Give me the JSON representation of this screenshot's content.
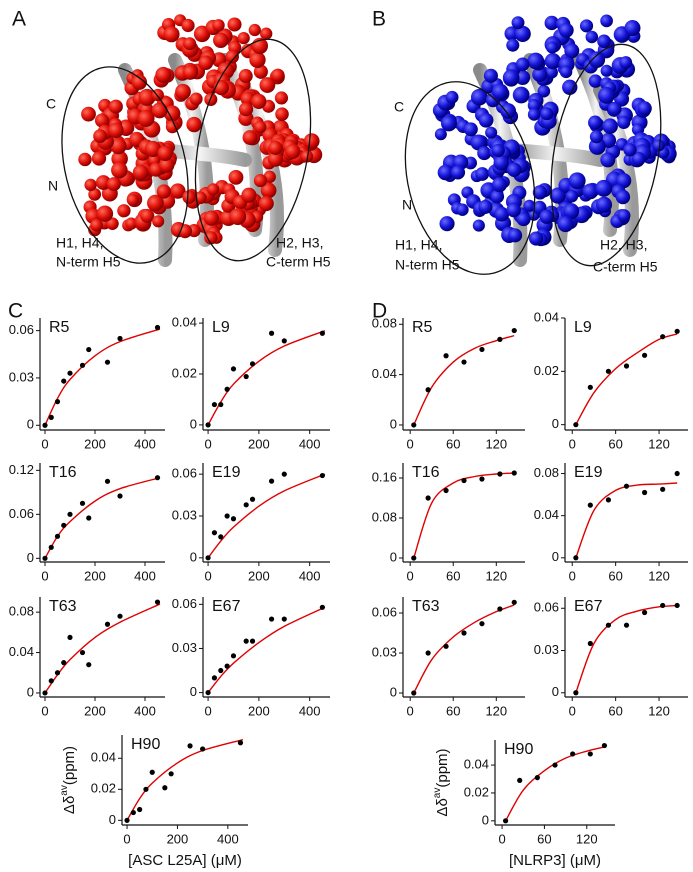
{
  "panels": {
    "A": {
      "letter": "A",
      "c_term": "C",
      "n_term": "N",
      "left_1": "H1, H4,",
      "left_2": "N-term H5",
      "right_1": "H2, H3,",
      "right_2": "C-term H5"
    },
    "B": {
      "letter": "B",
      "c_term": "C",
      "n_term": "N",
      "left_1": "H1, H4,",
      "left_2": "N-term H5",
      "right_1": "H2, H3,",
      "right_2": "C-term H5"
    },
    "C": {
      "letter": "C"
    },
    "D": {
      "letter": "D"
    }
  },
  "chart_data": [
    {
      "type": "scatter",
      "title": "R5",
      "x": [
        0,
        25,
        50,
        75,
        100,
        150,
        175,
        250,
        300,
        450
      ],
      "values": [
        0,
        0.005,
        0.015,
        0.028,
        0.033,
        0.038,
        0.048,
        0.04,
        0.055,
        0.062
      ],
      "fit": {
        "x": [
          0,
          50,
          100,
          200,
          300,
          460
        ],
        "y": [
          0,
          0.017,
          0.029,
          0.044,
          0.053,
          0.061
        ]
      },
      "xlim": [
        -20,
        480
      ],
      "ylim": [
        -0.003,
        0.068
      ],
      "xticks": [
        0,
        200,
        400
      ],
      "yticks": [
        0,
        0.03,
        0.06
      ],
      "point_color": "#000000",
      "color": "#e00000"
    },
    {
      "type": "scatter",
      "title": "L9",
      "x": [
        0,
        25,
        50,
        75,
        100,
        150,
        175,
        250,
        300,
        450
      ],
      "values": [
        0,
        0.008,
        0.008,
        0.014,
        0.022,
        0.019,
        0.024,
        0.036,
        0.033,
        0.036
      ],
      "fit": {
        "x": [
          0,
          50,
          100,
          200,
          300,
          460
        ],
        "y": [
          0,
          0.009,
          0.016,
          0.025,
          0.031,
          0.037
        ]
      },
      "xlim": [
        -20,
        480
      ],
      "ylim": [
        -0.002,
        0.042
      ],
      "xticks": [
        0,
        200,
        400
      ],
      "yticks": [
        0,
        0.02,
        0.04
      ],
      "point_color": "#000000",
      "color": "#e00000"
    },
    {
      "type": "scatter",
      "title": "T16",
      "x": [
        0,
        25,
        50,
        75,
        100,
        150,
        175,
        250,
        300,
        450
      ],
      "values": [
        0,
        0.015,
        0.03,
        0.045,
        0.06,
        0.075,
        0.055,
        0.105,
        0.085,
        0.11
      ],
      "fit": {
        "x": [
          0,
          50,
          100,
          200,
          300,
          460
        ],
        "y": [
          0,
          0.03,
          0.05,
          0.078,
          0.095,
          0.11
        ]
      },
      "xlim": [
        -20,
        480
      ],
      "ylim": [
        -0.005,
        0.13
      ],
      "xticks": [
        0,
        200,
        400
      ],
      "yticks": [
        0,
        0.06,
        0.12
      ],
      "point_color": "#000000",
      "color": "#e00000"
    },
    {
      "type": "scatter",
      "title": "E19",
      "x": [
        0,
        25,
        50,
        75,
        100,
        150,
        175,
        250,
        300,
        450
      ],
      "values": [
        0,
        0.018,
        0.015,
        0.03,
        0.028,
        0.038,
        0.042,
        0.055,
        0.06,
        0.059
      ],
      "fit": {
        "x": [
          0,
          50,
          100,
          200,
          300,
          460
        ],
        "y": [
          0,
          0.012,
          0.022,
          0.037,
          0.048,
          0.06
        ]
      },
      "xlim": [
        -20,
        480
      ],
      "ylim": [
        -0.003,
        0.068
      ],
      "xticks": [
        0,
        200,
        400
      ],
      "yticks": [
        0,
        0.03,
        0.06
      ],
      "point_color": "#000000",
      "color": "#e00000"
    },
    {
      "type": "scatter",
      "title": "T63",
      "x": [
        0,
        25,
        50,
        75,
        100,
        150,
        175,
        250,
        300,
        450
      ],
      "values": [
        0,
        0.012,
        0.02,
        0.03,
        0.055,
        0.04,
        0.028,
        0.068,
        0.076,
        0.09
      ],
      "fit": {
        "x": [
          0,
          50,
          100,
          200,
          300,
          460
        ],
        "y": [
          0,
          0.018,
          0.033,
          0.055,
          0.07,
          0.088
        ]
      },
      "xlim": [
        -20,
        480
      ],
      "ylim": [
        -0.004,
        0.095
      ],
      "xticks": [
        0,
        200,
        400
      ],
      "yticks": [
        0,
        0.04,
        0.08
      ],
      "point_color": "#000000",
      "color": "#e00000"
    },
    {
      "type": "scatter",
      "title": "E67",
      "x": [
        0,
        25,
        50,
        75,
        100,
        150,
        175,
        250,
        300,
        450
      ],
      "values": [
        0,
        0.01,
        0.015,
        0.018,
        0.025,
        0.035,
        0.035,
        0.05,
        0.05,
        0.058
      ],
      "fit": {
        "x": [
          0,
          50,
          100,
          200,
          300,
          460
        ],
        "y": [
          0,
          0.011,
          0.02,
          0.034,
          0.045,
          0.058
        ]
      },
      "xlim": [
        -20,
        480
      ],
      "ylim": [
        -0.003,
        0.065
      ],
      "xticks": [
        0,
        200,
        400
      ],
      "yticks": [
        0,
        0.03,
        0.06
      ],
      "point_color": "#000000",
      "color": "#e00000"
    },
    {
      "type": "scatter",
      "title": "H90",
      "x": [
        0,
        25,
        50,
        75,
        100,
        150,
        175,
        250,
        300,
        450
      ],
      "values": [
        0,
        0.005,
        0.007,
        0.02,
        0.031,
        0.021,
        0.03,
        0.048,
        0.046,
        0.05
      ],
      "fit": {
        "x": [
          0,
          50,
          100,
          200,
          300,
          460
        ],
        "y": [
          0,
          0.014,
          0.024,
          0.037,
          0.045,
          0.052
        ]
      },
      "xlim": [
        -20,
        480
      ],
      "ylim": [
        -0.003,
        0.055
      ],
      "xticks": [
        0,
        200,
        400
      ],
      "yticks": [
        0,
        0.02,
        0.04
      ],
      "point_color": "#000000",
      "color": "#e00000",
      "xlabel": "[ASC L25A] (μM)",
      "ylabel": "Δδ",
      "ylabel_superscript": "av",
      "ylabel_unit": "(ppm)"
    },
    {
      "type": "scatter",
      "title": "R5",
      "x": [
        5,
        25,
        50,
        75,
        100,
        125,
        145
      ],
      "values": [
        0,
        0.028,
        0.055,
        0.05,
        0.06,
        0.068,
        0.075
      ],
      "fit": {
        "x": [
          5,
          30,
          60,
          90,
          120,
          145
        ],
        "y": [
          0,
          0.03,
          0.05,
          0.061,
          0.067,
          0.071
        ]
      },
      "xlim": [
        -10,
        160
      ],
      "ylim": [
        -0.004,
        0.085
      ],
      "xticks": [
        0,
        60,
        120
      ],
      "yticks": [
        0,
        0.04,
        0.08
      ],
      "point_color": "#000000",
      "color": "#e00000"
    },
    {
      "type": "scatter",
      "title": "L9",
      "x": [
        5,
        25,
        50,
        75,
        100,
        125,
        145
      ],
      "values": [
        0,
        0.014,
        0.02,
        0.022,
        0.026,
        0.033,
        0.035
      ],
      "fit": {
        "x": [
          5,
          30,
          60,
          90,
          120,
          145
        ],
        "y": [
          0,
          0.012,
          0.021,
          0.027,
          0.032,
          0.034
        ]
      },
      "xlim": [
        -10,
        160
      ],
      "ylim": [
        -0.002,
        0.04
      ],
      "xticks": [
        0,
        60,
        120
      ],
      "yticks": [
        0,
        0.02,
        0.04
      ],
      "point_color": "#000000",
      "color": "#e00000"
    },
    {
      "type": "scatter",
      "title": "T16",
      "x": [
        5,
        25,
        50,
        75,
        100,
        125,
        145
      ],
      "values": [
        0,
        0.12,
        0.135,
        0.155,
        0.158,
        0.168,
        0.17
      ],
      "fit": {
        "x": [
          5,
          30,
          60,
          90,
          120,
          145
        ],
        "y": [
          0,
          0.11,
          0.15,
          0.163,
          0.168,
          0.17
        ]
      },
      "xlim": [
        -10,
        160
      ],
      "ylim": [
        -0.008,
        0.19
      ],
      "xticks": [
        0,
        60,
        120
      ],
      "yticks": [
        0,
        0.08,
        0.16
      ],
      "point_color": "#000000",
      "color": "#e00000"
    },
    {
      "type": "scatter",
      "title": "E19",
      "x": [
        5,
        25,
        50,
        75,
        100,
        125,
        145
      ],
      "values": [
        0,
        0.05,
        0.055,
        0.068,
        0.062,
        0.065,
        0.08
      ],
      "fit": {
        "x": [
          5,
          30,
          60,
          90,
          120,
          145
        ],
        "y": [
          0,
          0.045,
          0.064,
          0.069,
          0.07,
          0.071
        ]
      },
      "xlim": [
        -10,
        160
      ],
      "ylim": [
        -0.004,
        0.09
      ],
      "xticks": [
        0,
        60,
        120
      ],
      "yticks": [
        0,
        0.04,
        0.08
      ],
      "point_color": "#000000",
      "color": "#e00000"
    },
    {
      "type": "scatter",
      "title": "T63",
      "x": [
        5,
        25,
        50,
        75,
        100,
        125,
        145
      ],
      "values": [
        0,
        0.03,
        0.035,
        0.045,
        0.052,
        0.063,
        0.068
      ],
      "fit": {
        "x": [
          5,
          30,
          60,
          90,
          120,
          145
        ],
        "y": [
          0,
          0.025,
          0.042,
          0.053,
          0.061,
          0.066
        ]
      },
      "xlim": [
        -10,
        160
      ],
      "ylim": [
        -0.003,
        0.072
      ],
      "xticks": [
        0,
        60,
        120
      ],
      "yticks": [
        0,
        0.03,
        0.06
      ],
      "point_color": "#000000",
      "color": "#e00000"
    },
    {
      "type": "scatter",
      "title": "E67",
      "x": [
        5,
        25,
        50,
        75,
        100,
        125,
        145
      ],
      "values": [
        0,
        0.035,
        0.048,
        0.048,
        0.057,
        0.062,
        0.062
      ],
      "fit": {
        "x": [
          5,
          30,
          60,
          90,
          120,
          145
        ],
        "y": [
          0,
          0.035,
          0.052,
          0.058,
          0.061,
          0.062
        ]
      },
      "xlim": [
        -10,
        160
      ],
      "ylim": [
        -0.003,
        0.068
      ],
      "xticks": [
        0,
        60,
        120
      ],
      "yticks": [
        0,
        0.03,
        0.06
      ],
      "point_color": "#000000",
      "color": "#e00000"
    },
    {
      "type": "scatter",
      "title": "H90",
      "x": [
        5,
        25,
        50,
        75,
        100,
        125,
        145
      ],
      "values": [
        0,
        0.029,
        0.031,
        0.04,
        0.048,
        0.048,
        0.054
      ],
      "fit": {
        "x": [
          5,
          30,
          60,
          90,
          120,
          145
        ],
        "y": [
          0,
          0.022,
          0.036,
          0.045,
          0.05,
          0.053
        ]
      },
      "xlim": [
        -10,
        160
      ],
      "ylim": [
        -0.003,
        0.058
      ],
      "xticks": [
        0,
        60,
        120
      ],
      "yticks": [
        0,
        0.02,
        0.04
      ],
      "point_color": "#000000",
      "color": "#e00000",
      "xlabel": "[NLRP3] (μM)",
      "ylabel": "Δδ",
      "ylabel_superscript": "av",
      "ylabel_unit": "(ppm)"
    }
  ]
}
